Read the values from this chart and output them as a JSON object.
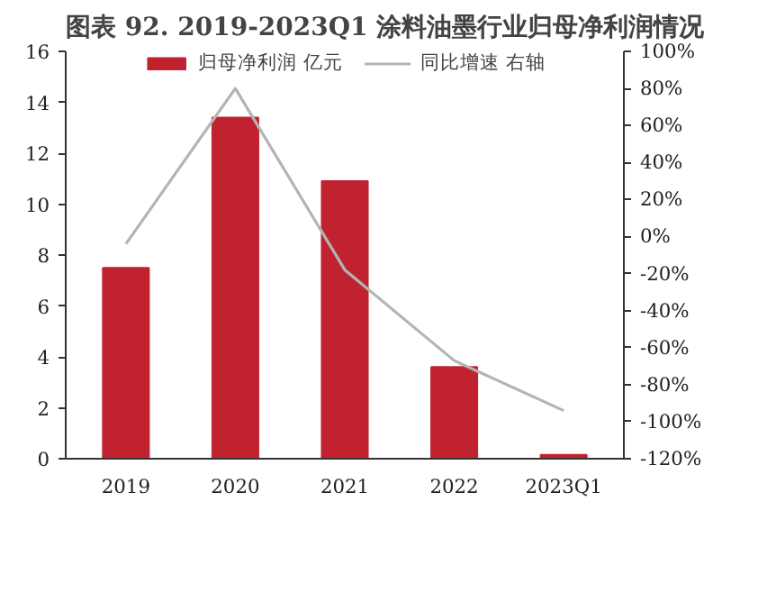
{
  "chart_data": {
    "type": "bar",
    "title": "图表 92. 2019-2023Q1 涂料油墨行业归母净利润情况",
    "categories": [
      "2019",
      "2020",
      "2021",
      "2022",
      "2023Q1"
    ],
    "series": [
      {
        "name": "归母净利润 亿元",
        "color": "#c0232f",
        "values": [
          7.5,
          13.4,
          10.9,
          3.6,
          0.15
        ]
      },
      {
        "name": "同比增速 右轴",
        "type": "line",
        "axis": "y2",
        "color": "#b4b4b4",
        "values": [
          -4,
          80,
          -18,
          -67,
          -94
        ]
      }
    ],
    "ylim": [
      0,
      16
    ],
    "yticks": [
      0,
      2,
      4,
      6,
      8,
      10,
      12,
      14,
      16
    ],
    "y2lim": [
      -120,
      100
    ],
    "y2ticks": [
      {
        "value": -120,
        "label": "-120%"
      },
      {
        "value": -100,
        "label": "-100%"
      },
      {
        "value": -80,
        "label": "-80%"
      },
      {
        "value": -60,
        "label": "-60%"
      },
      {
        "value": -40,
        "label": "-40%"
      },
      {
        "value": -20,
        "label": "-20%"
      },
      {
        "value": 0,
        "label": "0%"
      },
      {
        "value": 20,
        "label": "20%"
      },
      {
        "value": 40,
        "label": "40%"
      },
      {
        "value": 60,
        "label": "60%"
      },
      {
        "value": 80,
        "label": "80%"
      },
      {
        "value": 100,
        "label": "100%"
      }
    ],
    "grid": false,
    "legend": "top"
  }
}
